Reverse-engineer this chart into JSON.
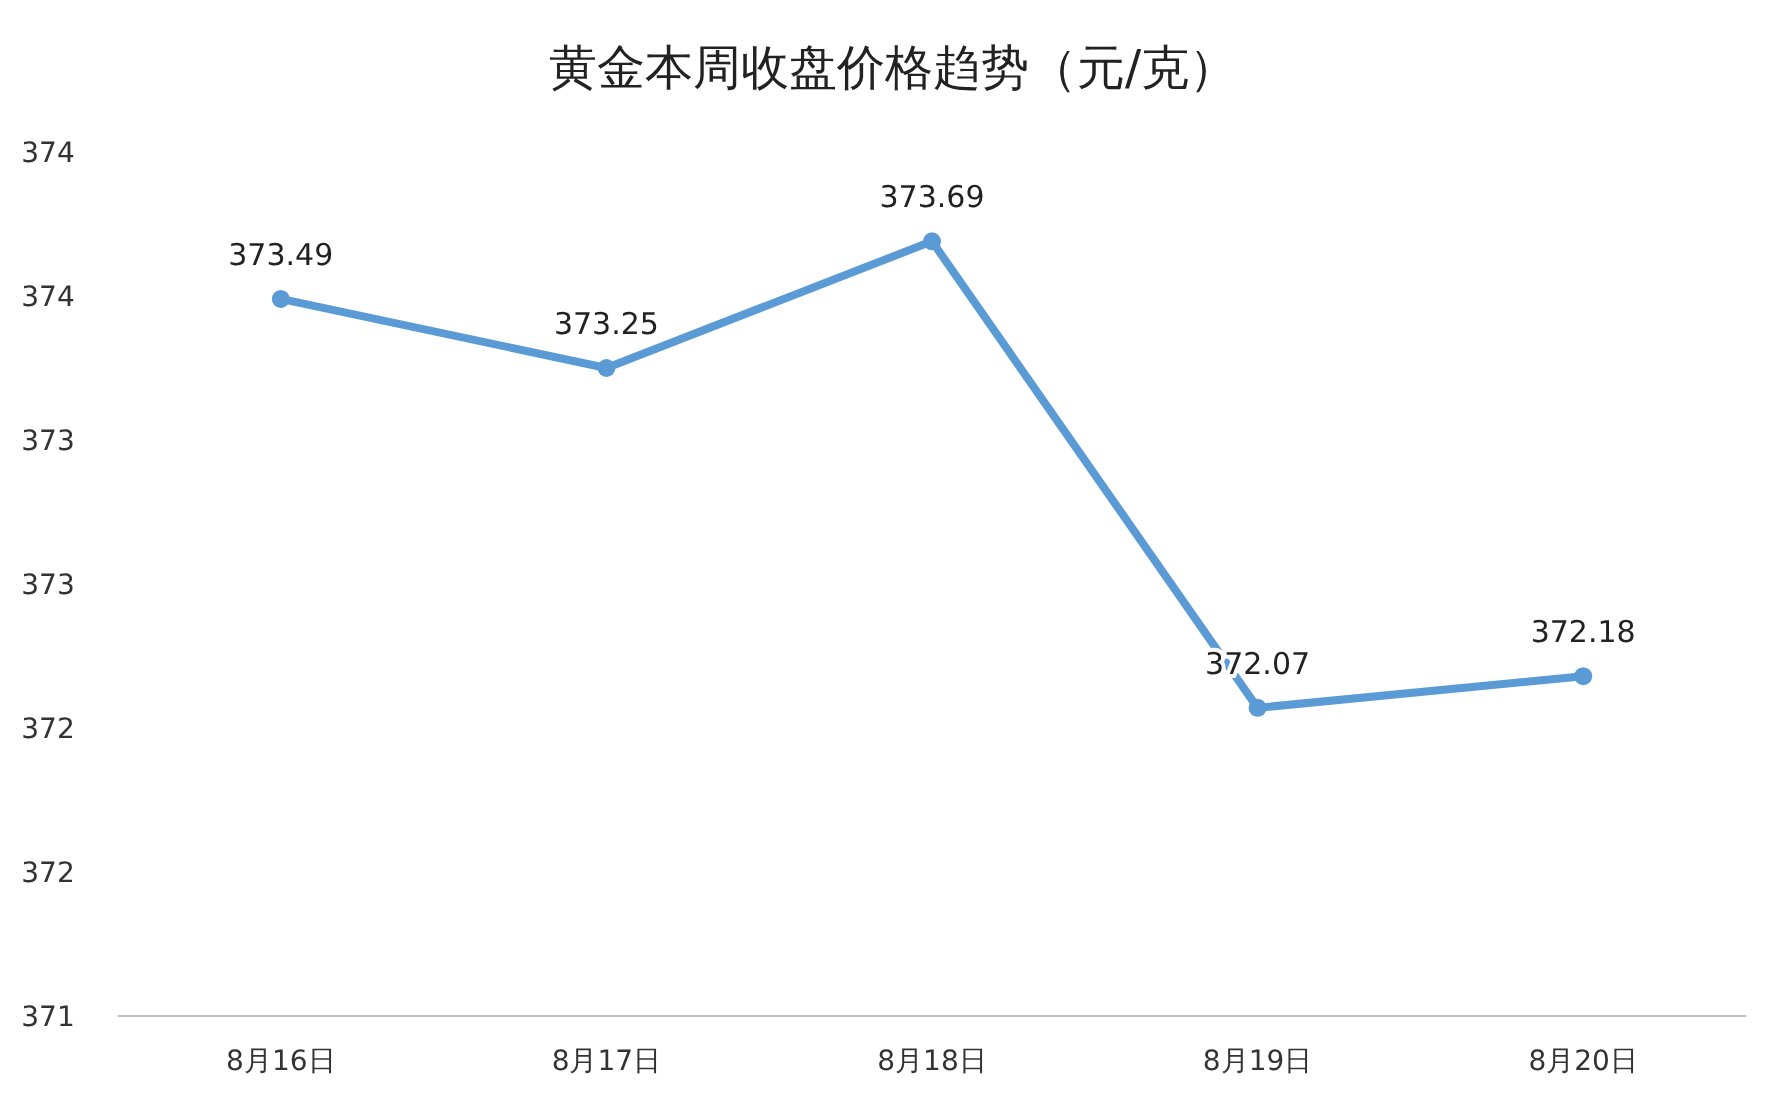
{
  "chart_data": {
    "type": "line",
    "title": "黄金本周收盘价格趋势（元/克）",
    "categories": [
      "8月16日",
      "8月17日",
      "8月18日",
      "8月19日",
      "8月20日"
    ],
    "series": [
      {
        "color": "#5b9bd5",
        "values": [
          373.49,
          373.25,
          373.69,
          372.07,
          372.18
        ]
      }
    ],
    "ylim": [
      371,
      374
    ],
    "yticks": [
      {
        "value": 371,
        "label": "371"
      },
      {
        "value": 371.5,
        "label": "372"
      },
      {
        "value": 372,
        "label": "372"
      },
      {
        "value": 372.5,
        "label": "373"
      },
      {
        "value": 373,
        "label": "373"
      },
      {
        "value": 373.5,
        "label": "374"
      },
      {
        "value": 374,
        "label": "374"
      }
    ],
    "data_labels": true,
    "marker": "circle",
    "grid": false
  }
}
